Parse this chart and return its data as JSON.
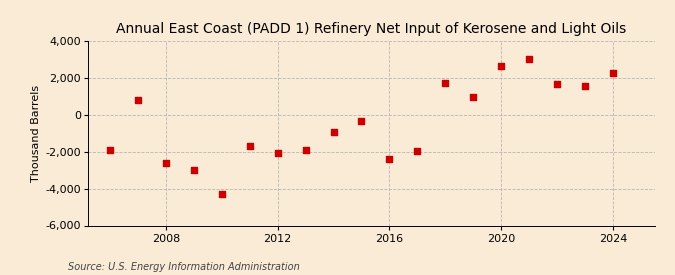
{
  "title": "Annual East Coast (PADD 1) Refinery Net Input of Kerosene and Light Oils",
  "ylabel": "Thousand Barrels",
  "source": "Source: U.S. Energy Information Administration",
  "background_color": "#faebd7",
  "plot_bg_color": "#faebd7",
  "marker_color": "#cc0000",
  "grid_color": "#b0b0b0",
  "years": [
    2006,
    2007,
    2008,
    2009,
    2010,
    2011,
    2012,
    2013,
    2014,
    2015,
    2016,
    2017,
    2018,
    2019,
    2020,
    2021,
    2022,
    2023,
    2024
  ],
  "values": [
    -1900,
    800,
    -2600,
    -3000,
    -4300,
    -1700,
    -2050,
    -1900,
    -900,
    -350,
    -2400,
    -1950,
    1750,
    1000,
    2650,
    3050,
    1700,
    1550,
    2250
  ],
  "ylim": [
    -6000,
    4000
  ],
  "yticks": [
    -6000,
    -4000,
    -2000,
    0,
    2000,
    4000
  ],
  "xlim": [
    2005.2,
    2025.5
  ],
  "xticks": [
    2008,
    2012,
    2016,
    2020,
    2024
  ],
  "title_fontsize": 10,
  "label_fontsize": 8,
  "tick_fontsize": 8,
  "source_fontsize": 7
}
